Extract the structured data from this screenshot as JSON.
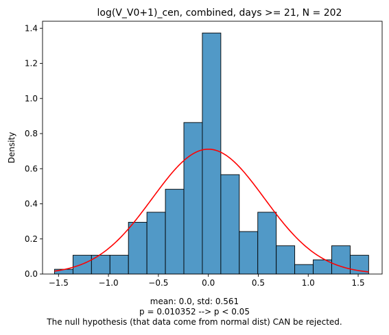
{
  "chart_data": {
    "type": "bar",
    "title": "log(V_V0+1)_cen, combined, days >= 21, N = 202",
    "xlabel": "",
    "ylabel": "Density",
    "xlim": [
      -1.66,
      1.74
    ],
    "ylim": [
      0,
      1.44
    ],
    "x_ticks": [
      -1.5,
      -1.0,
      -0.5,
      0.0,
      0.5,
      1.0,
      1.5
    ],
    "x_tick_labels": [
      "−1.5",
      "−1.0",
      "−0.5",
      "0.0",
      "0.5",
      "1.0",
      "1.5"
    ],
    "y_ticks": [
      0.0,
      0.2,
      0.4,
      0.6,
      0.8,
      1.0,
      1.2,
      1.4
    ],
    "y_tick_labels": [
      "0.0",
      "0.2",
      "0.4",
      "0.6",
      "0.8",
      "1.0",
      "1.2",
      "1.4"
    ],
    "bin_edges": [
      -1.54,
      -1.355,
      -1.17,
      -0.985,
      -0.8,
      -0.615,
      -0.43,
      -0.245,
      -0.06,
      0.125,
      0.31,
      0.495,
      0.68,
      0.865,
      1.05,
      1.235,
      1.42,
      1.605
    ],
    "values": [
      0.027,
      0.107,
      0.107,
      0.107,
      0.295,
      0.352,
      0.483,
      0.863,
      1.373,
      0.566,
      0.242,
      0.352,
      0.161,
      0.054,
      0.081,
      0.161,
      0.107
    ],
    "bar_color": "#5199c7",
    "edge_color": "#000000",
    "normal_fit": {
      "mean": 0.0,
      "std": 0.561,
      "x_range": [
        -1.54,
        1.605
      ],
      "color": "#ff0000"
    },
    "grid": false,
    "legend": "none"
  },
  "caption": {
    "line1": "mean: 0.0, std: 0.561",
    "line2": "p = 0.010352 --> p < 0.05",
    "line3": "The null hypothesis (that data come from normal dist) CAN be rejected."
  }
}
